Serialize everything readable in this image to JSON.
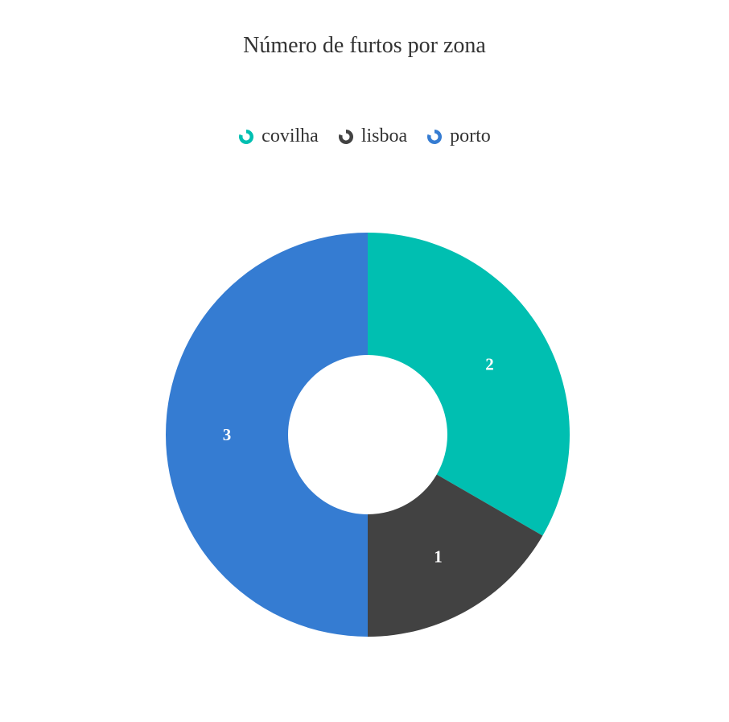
{
  "chart_data": {
    "type": "pie",
    "variant": "donut",
    "title": "Número de furtos por zona",
    "legend_position": "top-center",
    "categories": [
      "covilha",
      "lisboa",
      "porto"
    ],
    "values": [
      2,
      1,
      3
    ],
    "colors": [
      "#00bfb1",
      "#424242",
      "#357cd2"
    ],
    "data_labels": [
      "2",
      "1",
      "3"
    ]
  }
}
